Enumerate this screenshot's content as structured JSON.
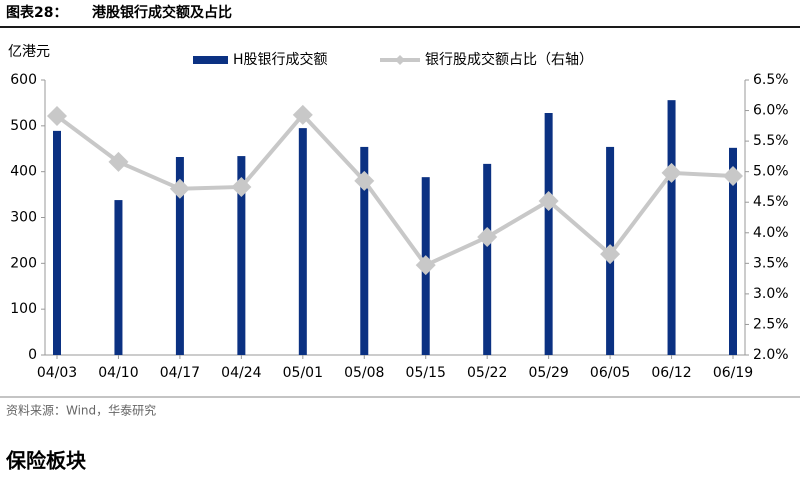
{
  "chart_data": {
    "type": "bar-line",
    "figure_label": "图表28：",
    "title": "港股银行成交额及占比",
    "y_label": "亿港元",
    "categories": [
      "04/03",
      "04/10",
      "04/17",
      "04/24",
      "05/01",
      "05/08",
      "05/15",
      "05/22",
      "05/29",
      "06/05",
      "06/12",
      "06/19"
    ],
    "series": [
      {
        "name": "H股银行成交额",
        "type": "bar",
        "color": "#0b3182",
        "values": [
          489,
          338,
          432,
          434,
          495,
          454,
          388,
          417,
          528,
          454,
          556,
          452
        ]
      },
      {
        "name": "银行股成交额占比（右轴）",
        "type": "line",
        "axis": "y2",
        "color": "#c8c8c8",
        "values": [
          5.91,
          5.16,
          4.72,
          4.75,
          5.93,
          4.85,
          3.47,
          3.93,
          4.52,
          3.65,
          4.98,
          4.93
        ]
      }
    ],
    "ylim": [
      0,
      600
    ],
    "yticks": [
      0,
      100,
      200,
      300,
      400,
      500,
      600
    ],
    "y2lim": [
      2,
      6.5
    ],
    "y2ticks": [
      {
        "value": 2,
        "label": "2.0%"
      },
      {
        "value": 2.5,
        "label": "2.5%"
      },
      {
        "value": 3,
        "label": "3.0%"
      },
      {
        "value": 3.5,
        "label": "3.5%"
      },
      {
        "value": 4,
        "label": "4.0%"
      },
      {
        "value": 4.5,
        "label": "4.5%"
      },
      {
        "value": 5,
        "label": "5.0%"
      },
      {
        "value": 5.5,
        "label": "5.5%"
      },
      {
        "value": 6,
        "label": "6.0%"
      },
      {
        "value": 6.5,
        "label": "6.5%"
      }
    ],
    "source": "资料来源：Wind，华泰研究"
  },
  "section_title": "保险板块"
}
